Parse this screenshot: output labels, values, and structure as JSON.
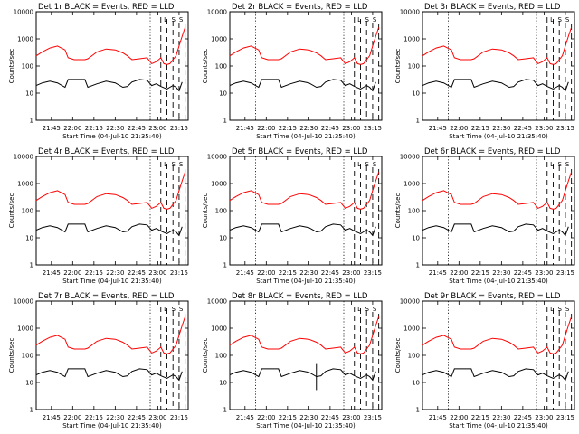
{
  "chart_data": [
    {
      "type": "line",
      "title": "Det 1r BLACK = Events, RED = LLD",
      "ylabel": "Counts/sec",
      "xlabel": "Start Time (04-Jul-10 21:35:40)",
      "xticks": [
        "21:45",
        "22:00",
        "22:15",
        "22:30",
        "22:45",
        "23:00",
        "23:15"
      ],
      "yticks": [
        "1",
        "10",
        "100",
        "1000",
        "10000"
      ],
      "yscale": "log",
      "series": [
        {
          "name": "Events",
          "color": "#000000"
        },
        {
          "name": "LLD",
          "color": "#ff0000"
        }
      ]
    },
    {
      "type": "line",
      "title": "Det 2r BLACK = Events, RED = LLD",
      "ylabel": "Counts/sec",
      "xlabel": "Start Time (04-Jul-10 21:35:40)",
      "xticks": [
        "21:45",
        "22:00",
        "22:15",
        "22:30",
        "22:45",
        "23:00",
        "23:15"
      ],
      "yticks": [
        "1",
        "10",
        "100",
        "1000",
        "10000"
      ],
      "yscale": "log",
      "series": [
        {
          "name": "Events",
          "color": "#000000"
        },
        {
          "name": "LLD",
          "color": "#ff0000"
        }
      ]
    },
    {
      "type": "line",
      "title": "Det 3r BLACK = Events, RED = LLD",
      "ylabel": "Counts/sec",
      "xlabel": "Start Time (04-Jul-10 21:35:40)",
      "xticks": [
        "21:45",
        "22:00",
        "22:15",
        "22:30",
        "22:45",
        "23:00",
        "23:15"
      ],
      "yticks": [
        "1",
        "10",
        "100",
        "1000",
        "10000"
      ],
      "yscale": "log",
      "series": [
        {
          "name": "Events",
          "color": "#000000"
        },
        {
          "name": "LLD",
          "color": "#ff0000"
        }
      ]
    },
    {
      "type": "line",
      "title": "Det 4r BLACK = Events, RED = LLD",
      "ylabel": "Counts/sec",
      "xlabel": "Start Time (04-Jul-10 21:35:40)",
      "xticks": [
        "21:45",
        "22:00",
        "22:15",
        "22:30",
        "22:45",
        "23:00",
        "23:15"
      ],
      "yticks": [
        "1",
        "10",
        "100",
        "1000",
        "10000"
      ],
      "yscale": "log",
      "series": [
        {
          "name": "Events",
          "color": "#000000"
        },
        {
          "name": "LLD",
          "color": "#ff0000"
        }
      ]
    },
    {
      "type": "line",
      "title": "Det 5r BLACK = Events, RED = LLD",
      "ylabel": "Counts/sec",
      "xlabel": "Start Time (04-Jul-10 21:35:40)",
      "xticks": [
        "21:45",
        "22:00",
        "22:15",
        "22:30",
        "22:45",
        "23:00",
        "23:15"
      ],
      "yticks": [
        "1",
        "10",
        "100",
        "1000",
        "10000"
      ],
      "yscale": "log",
      "series": [
        {
          "name": "Events",
          "color": "#000000"
        },
        {
          "name": "LLD",
          "color": "#ff0000"
        }
      ]
    },
    {
      "type": "line",
      "title": "Det 6r BLACK = Events, RED = LLD",
      "ylabel": "Counts/sec",
      "xlabel": "Start Time (04-Jul-10 21:35:40)",
      "xticks": [
        "21:45",
        "22:00",
        "22:15",
        "22:30",
        "22:45",
        "23:00",
        "23:15"
      ],
      "yticks": [
        "1",
        "10",
        "100",
        "1000",
        "10000"
      ],
      "yscale": "log",
      "series": [
        {
          "name": "Events",
          "color": "#000000"
        },
        {
          "name": "LLD",
          "color": "#ff0000"
        }
      ]
    },
    {
      "type": "line",
      "title": "Det 7r BLACK = Events, RED = LLD",
      "ylabel": "Counts/sec",
      "xlabel": "Start Time (04-Jul-10 21:35:40)",
      "xticks": [
        "21:45",
        "22:00",
        "22:15",
        "22:30",
        "22:45",
        "23:00",
        "23:15"
      ],
      "yticks": [
        "1",
        "10",
        "100",
        "1000",
        "10000"
      ],
      "yscale": "log",
      "series": [
        {
          "name": "Events",
          "color": "#000000"
        },
        {
          "name": "LLD",
          "color": "#ff0000"
        }
      ]
    },
    {
      "type": "line",
      "title": "Det 8r BLACK = Events, RED = LLD",
      "ylabel": "Counts/sec",
      "xlabel": "Start Time (04-Jul-10 21:35:40)",
      "xticks": [
        "21:45",
        "22:00",
        "22:15",
        "22:30",
        "22:45",
        "23:00",
        "23:15"
      ],
      "yticks": [
        "1",
        "10",
        "100",
        "1000",
        "10000"
      ],
      "yscale": "log",
      "series": [
        {
          "name": "Events",
          "color": "#000000"
        },
        {
          "name": "LLD",
          "color": "#ff0000"
        }
      ]
    },
    {
      "type": "line",
      "title": "Det 9r BLACK = Events, RED = LLD",
      "ylabel": "Counts/sec",
      "xlabel": "Start Time (04-Jul-10 21:35:40)",
      "xticks": [
        "21:45",
        "22:00",
        "22:15",
        "22:30",
        "22:45",
        "23:00",
        "23:15"
      ],
      "yticks": [
        "1",
        "10",
        "100",
        "1000",
        "10000"
      ],
      "yscale": "log",
      "series": [
        {
          "name": "Events",
          "color": "#000000"
        },
        {
          "name": "LLD",
          "color": "#ff0000"
        }
      ]
    }
  ]
}
